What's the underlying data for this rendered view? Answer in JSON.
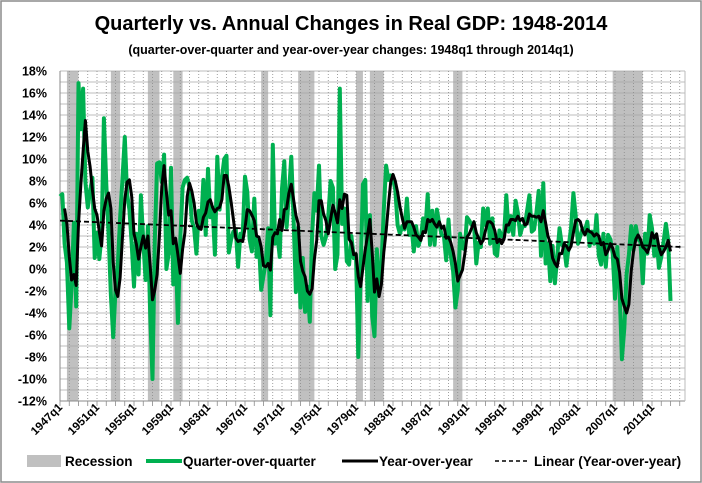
{
  "chart_data": {
    "type": "line",
    "title": "Quarterly vs. Annual Changes in Real GDP: 1948-2014",
    "subtitle": "(quarter-over-quarter and year-over-year changes: 1948q1 through 2014q1)",
    "ylim": [
      -12,
      18
    ],
    "y_ticks": [
      "18%",
      "16%",
      "14%",
      "12%",
      "10%",
      "8%",
      "6%",
      "4%",
      "2%",
      "0%",
      "-2%",
      "-4%",
      "-6%",
      "-8%",
      "-10%",
      "-12%"
    ],
    "y_tick_values": [
      18,
      16,
      14,
      12,
      10,
      8,
      6,
      4,
      2,
      0,
      -2,
      -4,
      -6,
      -8,
      -10,
      -12
    ],
    "x_ticks": [
      "1947q1",
      "1951q1",
      "1955q1",
      "1959q1",
      "1963q1",
      "1967q1",
      "1971q1",
      "1975q1",
      "1979q1",
      "1983q1",
      "1987q1",
      "1991q1",
      "1995q1",
      "1999q1",
      "2003q1",
      "2007q1",
      "2011q1"
    ],
    "grid": true,
    "legend_position": "bottom",
    "legend": [
      "Recession",
      "Quarter-over-quarter",
      "Year-over-year",
      "Linear (Year-over-year)"
    ],
    "colors": {
      "recession": "#C0C0C0",
      "qoq": "#00B050",
      "yoy": "#000000",
      "trend": "#000000"
    },
    "recessions": [
      [
        "1948q4",
        "1949q4"
      ],
      [
        "1953q3",
        "1954q2"
      ],
      [
        "1957q3",
        "1958q3"
      ],
      [
        "1960q2",
        "1961q1"
      ],
      [
        "1969q4",
        "1970q2"
      ],
      [
        "1973q4",
        "1975q2"
      ],
      [
        "1980q1",
        "1980q3"
      ],
      [
        "1981q3",
        "1982q4"
      ],
      [
        "1990q3",
        "1991q2"
      ],
      [
        "2007q4",
        "2010q4"
      ]
    ],
    "series": [
      {
        "name": "Quarter-over-quarter",
        "start": "1948q1",
        "values": [
          6.6,
          6.8,
          2.3,
          0.6,
          -5.4,
          -1.5,
          4.2,
          -3.4,
          16.9,
          12.7,
          16.4,
          7.9,
          5.6,
          7.1,
          8.3,
          1.0,
          3.3,
          0.9,
          3.1,
          13.7,
          7.7,
          3.1,
          -2.4,
          -6.2,
          -1.9,
          0.4,
          4.6,
          8.1,
          12.0,
          6.8,
          5.4,
          2.3,
          -1.6,
          3.2,
          -0.5,
          6.7,
          2.5,
          -1.0,
          3.9,
          -4.1,
          -10.0,
          2.6,
          9.6,
          9.7,
          7.9,
          10.4,
          0.0,
          1.4,
          9.2,
          -1.4,
          2.1,
          -4.9,
          2.7,
          7.4,
          8.1,
          8.3,
          7.4,
          4.4,
          3.7,
          1.4,
          5.3,
          4.0,
          8.1,
          3.1,
          9.1,
          4.7,
          5.6,
          1.3,
          10.2,
          5.4,
          8.3,
          10.0,
          10.3,
          1.5,
          2.7,
          3.4,
          3.6,
          0.2,
          3.2,
          3.1,
          8.4,
          7.0,
          2.7,
          1.6,
          6.4,
          1.1,
          2.5,
          -1.9,
          -0.6,
          0.6,
          3.7,
          -4.2,
          11.3,
          2.3,
          3.2,
          1.1,
          7.3,
          9.8,
          3.8,
          6.8,
          10.2,
          4.5,
          -2.1,
          3.8,
          -3.5,
          1.0,
          -3.9,
          -1.6,
          -4.8,
          3.1,
          6.9,
          5.3,
          9.4,
          3.0,
          2.2,
          2.9,
          4.8,
          8.0,
          7.4,
          0.0,
          1.3,
          16.4,
          4.1,
          5.5,
          0.7,
          0.4,
          3.0,
          1.0,
          1.3,
          -8.0,
          -0.5,
          7.7,
          8.1,
          -2.9,
          4.9,
          -4.3,
          -6.1,
          1.8,
          -1.5,
          0.2,
          5.4,
          9.4,
          8.1,
          8.5,
          8.2,
          7.2,
          4.0,
          3.2,
          3.9,
          3.6,
          6.4,
          3.1,
          3.9,
          1.6,
          3.9,
          2.1,
          2.8,
          4.6,
          3.6,
          6.8,
          2.2,
          5.3,
          2.2,
          5.4,
          4.1,
          3.1,
          3.0,
          0.8,
          4.5,
          1.2,
          -0.2,
          -3.5,
          -1.9,
          3.2,
          1.9,
          1.8,
          4.7,
          4.4,
          4.0,
          4.2,
          0.5,
          2.4,
          2.0,
          5.5,
          4.0,
          5.5,
          2.3,
          4.6,
          1.4,
          1.2,
          3.5,
          3.0,
          2.9,
          6.7,
          3.4,
          4.8,
          3.1,
          6.2,
          5.1,
          3.1,
          3.9,
          3.9,
          5.3,
          6.7,
          3.4,
          3.6,
          5.1,
          7.1,
          1.2,
          7.8,
          0.5,
          2.3,
          -1.1,
          2.1,
          -1.3,
          1.1,
          3.7,
          2.2,
          2.0,
          0.3,
          2.1,
          3.8,
          6.9,
          4.8,
          2.3,
          3.0,
          3.7,
          3.5,
          4.3,
          2.1,
          3.4,
          2.3,
          4.9,
          1.2,
          0.4,
          3.2,
          0.2,
          3.1,
          2.7,
          1.4,
          -2.7,
          2.0,
          -1.9,
          -8.2,
          -5.4,
          -0.5,
          1.3,
          3.9,
          1.7,
          3.9,
          2.7,
          2.5,
          -1.3,
          3.2,
          1.4,
          4.9,
          3.7,
          1.2,
          2.8,
          0.1,
          1.1,
          2.5,
          4.1,
          2.6,
          -2.9
        ]
      },
      {
        "name": "Year-over-year",
        "start": "1948q3",
        "values": [
          5.5,
          4.1,
          1.1,
          -1.0,
          -0.5,
          -1.5,
          4.1,
          7.6,
          10.7,
          13.5,
          10.7,
          9.3,
          7.2,
          5.5,
          4.9,
          3.4,
          2.1,
          5.3,
          6.4,
          6.9,
          5.5,
          0.6,
          -1.9,
          -2.5,
          -0.8,
          2.8,
          6.3,
          7.9,
          8.1,
          6.6,
          3.2,
          2.3,
          0.9,
          2.0,
          3.0,
          1.9,
          3.0,
          0.3,
          -2.8,
          -1.9,
          -0.5,
          3.0,
          7.5,
          9.4,
          7.0,
          4.9,
          5.3,
          2.3,
          2.8,
          1.3,
          -0.4,
          1.8,
          3.3,
          6.6,
          7.8,
          7.1,
          6.0,
          4.2,
          3.7,
          3.6,
          4.7,
          5.1,
          6.1,
          6.3,
          5.6,
          5.2,
          5.5,
          5.6,
          6.3,
          8.5,
          8.5,
          7.5,
          6.1,
          4.5,
          2.8,
          2.5,
          2.6,
          2.5,
          3.7,
          5.4,
          5.3,
          4.9,
          4.4,
          3.0,
          2.9,
          2.0,
          0.3,
          0.2,
          0.5,
          -0.1,
          2.9,
          3.3,
          3.2,
          4.5,
          3.5,
          5.4,
          5.5,
          6.9,
          7.7,
          6.3,
          4.9,
          4.1,
          0.7,
          -0.2,
          -0.7,
          -2.0,
          -2.3,
          -1.8,
          0.9,
          2.6,
          6.2,
          6.2,
          5.0,
          4.4,
          3.2,
          4.5,
          5.8,
          5.1,
          4.2,
          6.3,
          5.5,
          6.8,
          6.7,
          2.7,
          2.4,
          1.3,
          1.4,
          -0.7,
          -1.6,
          0.1,
          1.8,
          3.1,
          4.5,
          1.5,
          -2.1,
          -0.9,
          -2.5,
          -1.4,
          1.5,
          3.4,
          5.8,
          7.9,
          8.6,
          8.0,
          7.0,
          5.7,
          4.6,
          3.7,
          4.3,
          4.3,
          4.3,
          3.8,
          3.1,
          2.9,
          2.6,
          3.4,
          3.3,
          4.5,
          4.3,
          4.5,
          4.1,
          3.8,
          4.3,
          3.7,
          3.9,
          2.8,
          2.9,
          2.4,
          1.6,
          0.5,
          -1.1,
          -0.6,
          -0.1,
          1.3,
          2.9,
          3.2,
          3.7,
          4.3,
          3.3,
          2.8,
          2.3,
          2.6,
          3.5,
          4.3,
          4.3,
          4.1,
          3.5,
          2.4,
          2.7,
          2.3,
          2.7,
          4.0,
          4.0,
          4.5,
          4.5,
          4.4,
          4.8,
          4.4,
          4.6,
          4.0,
          4.1,
          5.0,
          4.8,
          4.8,
          4.7,
          4.8,
          4.3,
          5.3,
          4.2,
          3.0,
          2.4,
          1.0,
          0.5,
          0.2,
          1.4,
          1.4,
          2.3,
          2.1,
          1.7,
          2.1,
          3.3,
          4.4,
          4.5,
          4.3,
          3.5,
          3.1,
          3.6,
          3.4,
          3.3,
          3.0,
          3.2,
          3.0,
          2.2,
          2.4,
          1.3,
          1.7,
          2.3,
          1.9,
          1.1,
          0.9,
          -0.3,
          -2.7,
          -3.4,
          -4.0,
          -3.2,
          -0.2,
          1.6,
          2.7,
          3.1,
          2.7,
          2.0,
          1.8,
          1.5,
          2.1,
          3.3,
          2.8,
          3.2,
          2.0,
          1.3,
          1.6,
          2.0,
          2.6,
          1.6
        ]
      },
      {
        "name": "Linear (Year-over-year)",
        "start": "1948q1",
        "end": "2015q2",
        "values": [
          4.4,
          2.0
        ]
      }
    ]
  }
}
